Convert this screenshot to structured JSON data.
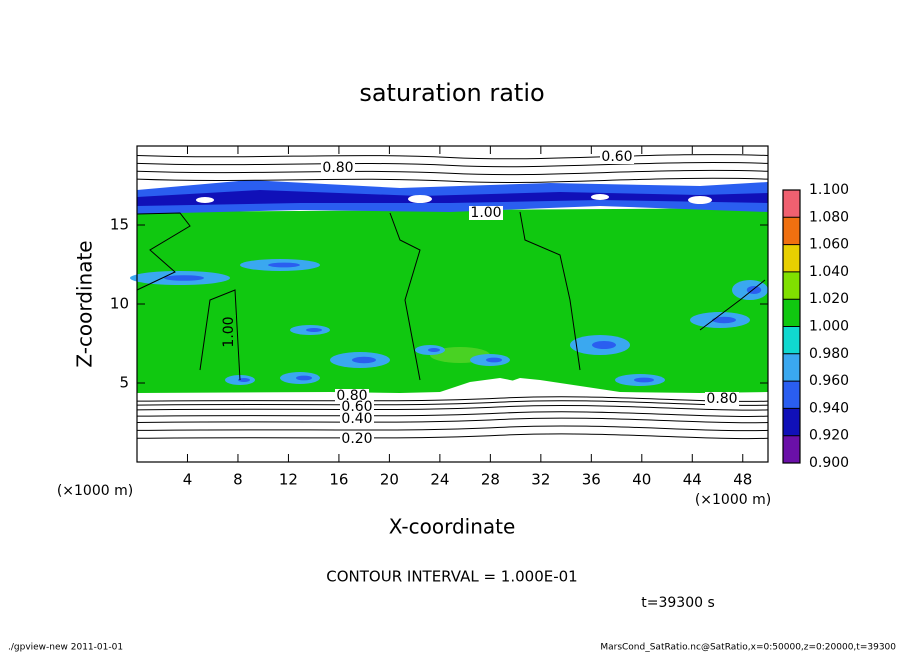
{
  "chart_data": {
    "type": "contour",
    "title": "saturation ratio",
    "xlabel": "X-coordinate",
    "ylabel": "Z-coordinate",
    "xunit": "(×1000 m)",
    "yunit": "(×1000 m)",
    "xlim": [
      0,
      50
    ],
    "ylim": [
      0,
      20
    ],
    "xticks": [
      4,
      8,
      12,
      16,
      20,
      24,
      28,
      32,
      36,
      40,
      44,
      48
    ],
    "yticks": [
      5,
      10,
      15
    ],
    "colorbar": {
      "levels": [
        0.9,
        0.92,
        0.94,
        0.96,
        0.98,
        1.0,
        1.02,
        1.04,
        1.06,
        1.08,
        1.1
      ],
      "ticks": [
        {
          "value": 0.9,
          "label": "0.900"
        },
        {
          "value": 0.92,
          "label": "0.920"
        },
        {
          "value": 0.94,
          "label": "0.940"
        },
        {
          "value": 0.96,
          "label": "0.960"
        },
        {
          "value": 0.98,
          "label": "0.980"
        },
        {
          "value": 1.0,
          "label": "1.000"
        },
        {
          "value": 1.02,
          "label": "1.020"
        },
        {
          "value": 1.04,
          "label": "1.040"
        },
        {
          "value": 1.06,
          "label": "1.060"
        },
        {
          "value": 1.08,
          "label": "1.080"
        },
        {
          "value": 1.1,
          "label": "1.100"
        }
      ],
      "colors": [
        "#6a10a8",
        "#1010b8",
        "#2a5ef0",
        "#3aa8f0",
        "#10d8d0",
        "#10c810",
        "#80e000",
        "#e8d000",
        "#f07010",
        "#f06070"
      ]
    },
    "contour_labels": [
      "0.80",
      "0.60",
      "1.00",
      "1.00",
      "0.80",
      "0.60",
      "0.40",
      "0.20",
      "0.80"
    ],
    "contour_interval": "CONTOUR INTERVAL = 1.000E-01",
    "time": "t=39300 s",
    "footer_left": "./gpview-new  2011-01-01",
    "footer_right": "MarsCond_SatRatio.nc@SatRatio,x=0:50000,z=0:20000,t=39300"
  }
}
